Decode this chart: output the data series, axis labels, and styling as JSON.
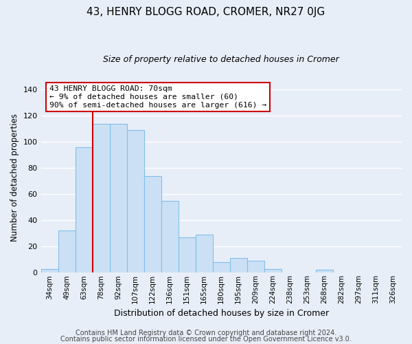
{
  "title": "43, HENRY BLOGG ROAD, CROMER, NR27 0JG",
  "subtitle": "Size of property relative to detached houses in Cromer",
  "xlabel": "Distribution of detached houses by size in Cromer",
  "ylabel": "Number of detached properties",
  "bar_labels": [
    "34sqm",
    "49sqm",
    "63sqm",
    "78sqm",
    "92sqm",
    "107sqm",
    "122sqm",
    "136sqm",
    "151sqm",
    "165sqm",
    "180sqm",
    "195sqm",
    "209sqm",
    "224sqm",
    "238sqm",
    "253sqm",
    "268sqm",
    "282sqm",
    "297sqm",
    "311sqm",
    "326sqm"
  ],
  "bar_values": [
    3,
    32,
    96,
    114,
    114,
    109,
    74,
    55,
    27,
    29,
    8,
    11,
    9,
    3,
    0,
    0,
    2,
    0,
    0,
    0,
    0
  ],
  "bar_color": "#cce0f5",
  "bar_edge_color": "#7fbfea",
  "ylim": [
    0,
    145
  ],
  "yticks": [
    0,
    20,
    40,
    60,
    80,
    100,
    120,
    140
  ],
  "property_line_color": "#cc0000",
  "annotation_title": "43 HENRY BLOGG ROAD: 70sqm",
  "annotation_line1": "← 9% of detached houses are smaller (60)",
  "annotation_line2": "90% of semi-detached houses are larger (616) →",
  "annotation_box_color": "#ffffff",
  "annotation_box_edge": "#cc0000",
  "footer1": "Contains HM Land Registry data © Crown copyright and database right 2024.",
  "footer2": "Contains public sector information licensed under the Open Government Licence v3.0.",
  "background_color": "#e8eef8",
  "plot_background": "#e8eef8",
  "grid_color": "#ffffff",
  "title_fontsize": 11,
  "subtitle_fontsize": 9,
  "footer_fontsize": 7
}
